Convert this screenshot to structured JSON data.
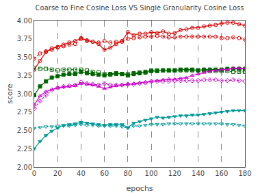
{
  "chart_data": {
    "type": "line",
    "title": "Coarse to Fine Cosine Loss VS Single Granularity Cosine Loss",
    "x_label": "epochs",
    "y_label": "score",
    "x": [
      0,
      5,
      10,
      15,
      20,
      25,
      30,
      35,
      40,
      45,
      50,
      55,
      60,
      65,
      70,
      75,
      80,
      85,
      90,
      95,
      100,
      105,
      110,
      115,
      120,
      125,
      130,
      135,
      140,
      145,
      150,
      155,
      160,
      165,
      170,
      175,
      180
    ],
    "xlim": [
      0,
      180
    ],
    "ylim": [
      2.0,
      4.0
    ],
    "xticks": [
      0,
      20,
      40,
      60,
      80,
      100,
      120,
      140,
      160,
      180
    ],
    "yticks": [
      {
        "value": 2.0,
        "label": "2.00"
      },
      {
        "value": 2.25,
        "label": "2.25"
      },
      {
        "value": 2.5,
        "label": "2.50"
      },
      {
        "value": 2.75,
        "label": "2.75"
      },
      {
        "value": 3.0,
        "label": "3.00"
      },
      {
        "value": 3.25,
        "label": "3.25"
      },
      {
        "value": 3.5,
        "label": "3.50"
      },
      {
        "value": 3.75,
        "label": "3.75"
      },
      {
        "value": 4.0,
        "label": "4.00"
      }
    ],
    "grid": "x",
    "series": [
      {
        "color": "#dd0000",
        "marker": "circle-open",
        "line_style": "solid",
        "values": [
          3.33,
          3.45,
          3.57,
          3.62,
          3.64,
          3.67,
          3.7,
          3.72,
          3.76,
          3.73,
          3.71,
          3.68,
          3.6,
          3.63,
          3.68,
          3.72,
          3.84,
          3.8,
          3.82,
          3.82,
          3.84,
          3.83,
          3.85,
          3.82,
          3.83,
          3.87,
          3.88,
          3.9,
          3.9,
          3.92,
          3.93,
          3.94,
          3.96,
          3.97,
          3.97,
          3.95,
          3.93
        ]
      },
      {
        "color": "#dd0000",
        "marker": "circle-open",
        "line_style": "dotted",
        "values": [
          3.48,
          3.55,
          3.58,
          3.6,
          3.63,
          3.65,
          3.67,
          3.68,
          3.75,
          3.72,
          3.71,
          3.7,
          3.72,
          3.7,
          3.71,
          3.71,
          3.75,
          3.76,
          3.77,
          3.78,
          3.78,
          3.79,
          3.78,
          3.77,
          3.77,
          3.78,
          3.78,
          3.78,
          3.78,
          3.78,
          3.78,
          3.78,
          3.76,
          3.76,
          3.77,
          3.76,
          3.74
        ]
      },
      {
        "color": "#006600",
        "marker": "square",
        "line_style": "solid",
        "values": [
          2.98,
          3.1,
          3.17,
          3.22,
          3.24,
          3.26,
          3.27,
          3.27,
          3.3,
          3.28,
          3.27,
          3.26,
          3.25,
          3.27,
          3.28,
          3.27,
          3.25,
          3.27,
          3.28,
          3.29,
          3.31,
          3.31,
          3.32,
          3.32,
          3.32,
          3.33,
          3.33,
          3.33,
          3.32,
          3.33,
          3.33,
          3.33,
          3.33,
          3.34,
          3.34,
          3.34,
          3.34
        ]
      },
      {
        "color": "#006600",
        "marker": "square-open",
        "line_style": "dotted",
        "values": [
          3.35,
          3.34,
          3.34,
          3.33,
          3.32,
          3.33,
          3.33,
          3.33,
          3.33,
          3.32,
          3.3,
          3.29,
          3.27,
          3.26,
          3.27,
          3.27,
          3.27,
          3.28,
          3.29,
          3.3,
          3.32,
          3.32,
          3.32,
          3.32,
          3.32,
          3.32,
          3.32,
          3.32,
          3.32,
          3.32,
          3.31,
          3.31,
          3.31,
          3.31,
          3.3,
          3.3,
          3.3
        ]
      },
      {
        "color": "#cc00cc",
        "marker": "triangle-up-open",
        "line_style": "solid",
        "values": [
          2.85,
          2.97,
          3.03,
          3.06,
          3.08,
          3.09,
          3.1,
          3.11,
          3.14,
          3.13,
          3.12,
          3.1,
          3.07,
          3.09,
          3.11,
          3.12,
          3.13,
          3.14,
          3.15,
          3.16,
          3.17,
          3.18,
          3.19,
          3.2,
          3.2,
          3.21,
          3.22,
          3.25,
          3.27,
          3.29,
          3.31,
          3.32,
          3.33,
          3.33,
          3.35,
          3.35,
          3.35
        ]
      },
      {
        "color": "#cc00cc",
        "marker": "diamond-open",
        "line_style": "dotted",
        "values": [
          2.8,
          2.9,
          2.98,
          3.05,
          3.08,
          3.1,
          3.11,
          3.12,
          3.16,
          3.14,
          3.13,
          3.12,
          3.14,
          3.12,
          3.12,
          3.12,
          3.13,
          3.13,
          3.14,
          3.15,
          3.17,
          3.17,
          3.17,
          3.17,
          3.18,
          3.18,
          3.18,
          3.18,
          3.18,
          3.19,
          3.19,
          3.19,
          3.18,
          3.18,
          3.19,
          3.18,
          3.17
        ]
      },
      {
        "color": "#009999",
        "marker": "triangle-down",
        "line_style": "solid",
        "values": [
          2.25,
          2.35,
          2.43,
          2.49,
          2.53,
          2.57,
          2.58,
          2.59,
          2.61,
          2.6,
          2.59,
          2.58,
          2.57,
          2.58,
          2.58,
          2.58,
          2.54,
          2.6,
          2.62,
          2.64,
          2.66,
          2.68,
          2.67,
          2.68,
          2.69,
          2.7,
          2.7,
          2.71,
          2.71,
          2.72,
          2.73,
          2.74,
          2.75,
          2.76,
          2.77,
          2.77,
          2.77
        ]
      },
      {
        "color": "#009999",
        "marker": "triangle-down-open",
        "line_style": "dotted",
        "values": [
          2.53,
          2.54,
          2.55,
          2.55,
          2.56,
          2.56,
          2.56,
          2.57,
          2.58,
          2.57,
          2.57,
          2.56,
          2.56,
          2.56,
          2.56,
          2.55,
          2.53,
          2.56,
          2.56,
          2.57,
          2.58,
          2.58,
          2.58,
          2.59,
          2.59,
          2.59,
          2.59,
          2.59,
          2.59,
          2.59,
          2.59,
          2.59,
          2.59,
          2.58,
          2.58,
          2.57,
          2.56
        ]
      }
    ]
  }
}
